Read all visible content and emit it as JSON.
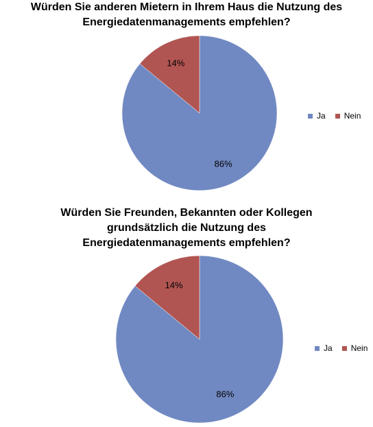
{
  "chart_data": [
    {
      "type": "pie",
      "title": "Würden Sie anderen Mietern in Ihrem Haus die Nutzung des Energiedatenmanagements empfehlen?",
      "slices": [
        {
          "label": "Ja",
          "value": 86,
          "display": "86%",
          "color": "#7189c2"
        },
        {
          "label": "Nein",
          "value": 14,
          "display": "14%",
          "color": "#b15552"
        }
      ],
      "legend_placement": "right"
    },
    {
      "type": "pie",
      "title": "Würden Sie Freunden, Bekannten oder Kollegen grundsätzlich die Nutzung des Energiedatenmanagements empfehlen?",
      "slices": [
        {
          "label": "Ja",
          "value": 86,
          "display": "86%",
          "color": "#7189c2"
        },
        {
          "label": "Nein",
          "value": 14,
          "display": "14%",
          "color": "#b15552"
        }
      ],
      "legend_placement": "right"
    }
  ]
}
